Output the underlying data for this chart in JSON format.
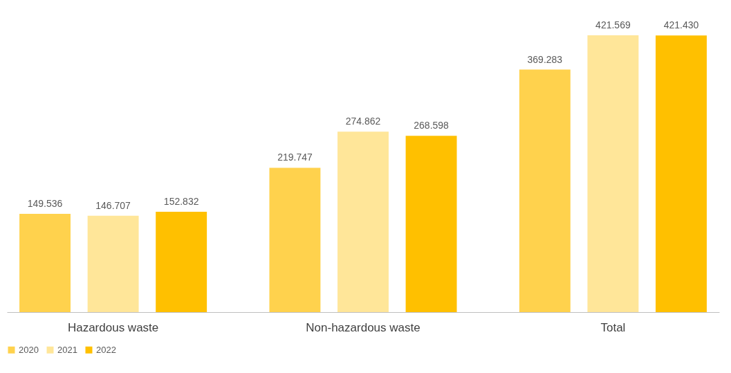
{
  "chart_data": {
    "type": "bar",
    "categories": [
      "Hazardous waste",
      "Non-hazardous waste",
      "Total"
    ],
    "series": [
      {
        "name": "2020",
        "color": "#ffd24d",
        "values": [
          149.536,
          219.747,
          369.283
        ],
        "value_labels": [
          "149.536",
          "219.747",
          "369.283"
        ]
      },
      {
        "name": "2021",
        "color": "#ffe699",
        "values": [
          146.707,
          274.862,
          421.569
        ],
        "value_labels": [
          "146.707",
          "274.862",
          "421.569"
        ]
      },
      {
        "name": "2022",
        "color": "#ffc000",
        "values": [
          152.832,
          268.598,
          421.43
        ],
        "value_labels": [
          "152.832",
          "268.598",
          "421.430"
        ]
      }
    ],
    "legend": "bottom",
    "grid": false
  }
}
